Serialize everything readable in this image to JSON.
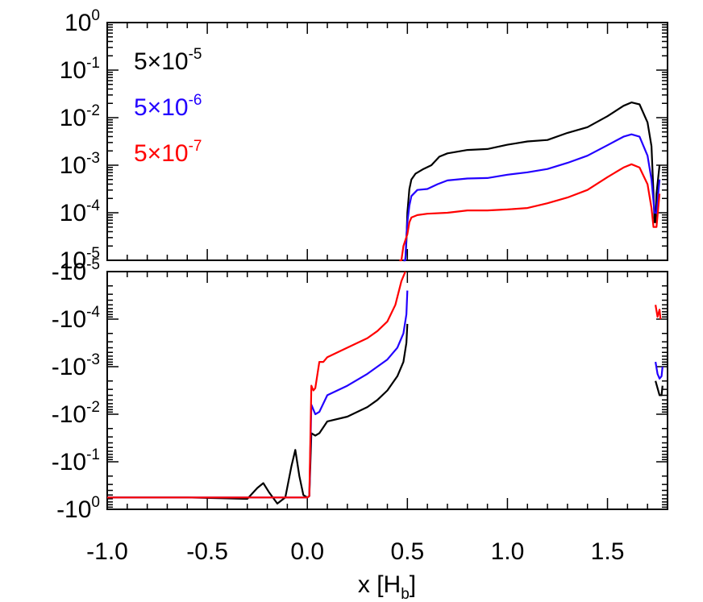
{
  "chart_data": {
    "type": "line",
    "xlabel": "x [H",
    "xlabel_sub": "b",
    "xlabel_close": "]",
    "xlim": [
      -1.0,
      1.8
    ],
    "x_ticks": [
      {
        "v": -1.0,
        "label": "-1.0"
      },
      {
        "v": -0.5,
        "label": "-0.5"
      },
      {
        "v": 0.0,
        "label": "0.0"
      },
      {
        "v": 0.5,
        "label": "0.5"
      },
      {
        "v": 1.0,
        "label": "1.0"
      },
      {
        "v": 1.5,
        "label": "1.5"
      }
    ],
    "top_panel": {
      "scale": "log",
      "ylim": [
        -5,
        0
      ],
      "y_ticks": [
        {
          "e": 0,
          "base": "10",
          "exp": "0"
        },
        {
          "e": -1,
          "base": "10",
          "exp": "-1"
        },
        {
          "e": -2,
          "base": "10",
          "exp": "-2"
        },
        {
          "e": -3,
          "base": "10",
          "exp": "-3"
        },
        {
          "e": -4,
          "base": "10",
          "exp": "-4"
        },
        {
          "e": -5,
          "base": "10",
          "exp": "-5"
        }
      ]
    },
    "bottom_panel": {
      "scale": "log (negative values)",
      "ylim": [
        -5,
        0
      ],
      "y_ticks": [
        {
          "e": -5,
          "base": "-10",
          "exp": "-5"
        },
        {
          "e": -4,
          "base": "-10",
          "exp": "-4"
        },
        {
          "e": -3,
          "base": "-10",
          "exp": "-3"
        },
        {
          "e": -2,
          "base": "-10",
          "exp": "-2"
        },
        {
          "e": -1,
          "base": "-10",
          "exp": "-1"
        },
        {
          "e": 0,
          "base": "-10",
          "exp": "0"
        }
      ]
    },
    "legend_placement": "top-left",
    "series": [
      {
        "name": "5×10",
        "name_exp": "-5",
        "color": "#000000",
        "top": [
          [
            [
              0.48,
              -5.5
            ],
            [
              0.49,
              -5.0
            ],
            [
              0.495,
              -4.6
            ],
            [
              0.5,
              -4.0
            ],
            [
              0.51,
              -3.5
            ],
            [
              0.52,
              -3.3
            ],
            [
              0.54,
              -3.18
            ],
            [
              0.58,
              -3.08
            ],
            [
              0.62,
              -3.0
            ],
            [
              0.66,
              -2.82
            ],
            [
              0.7,
              -2.75
            ],
            [
              0.8,
              -2.68
            ],
            [
              0.9,
              -2.66
            ],
            [
              1.0,
              -2.57
            ],
            [
              1.1,
              -2.5
            ],
            [
              1.2,
              -2.47
            ],
            [
              1.3,
              -2.32
            ],
            [
              1.4,
              -2.2
            ],
            [
              1.5,
              -1.97
            ],
            [
              1.58,
              -1.75
            ],
            [
              1.62,
              -1.68
            ],
            [
              1.66,
              -1.72
            ],
            [
              1.7,
              -2.1
            ],
            [
              1.72,
              -2.6
            ],
            [
              1.73,
              -3.6
            ],
            [
              1.735,
              -4.2
            ],
            [
              1.74,
              -4.2
            ],
            [
              1.745,
              -3.6
            ],
            [
              1.76,
              -3.0
            ]
          ]
        ],
        "bottom": [
          [
            [
              -1.0,
              -0.25
            ],
            [
              -0.6,
              -0.25
            ],
            [
              -0.4,
              -0.23
            ],
            [
              -0.3,
              -0.22
            ],
            [
              -0.25,
              -0.45
            ],
            [
              -0.22,
              -0.55
            ],
            [
              -0.19,
              -0.35
            ],
            [
              -0.15,
              -0.12
            ],
            [
              -0.11,
              -0.25
            ],
            [
              -0.08,
              -0.9
            ],
            [
              -0.06,
              -1.25
            ],
            [
              -0.04,
              -0.7
            ],
            [
              -0.02,
              -0.3
            ],
            [
              0.0,
              -0.25
            ],
            [
              0.01,
              -0.28
            ],
            [
              0.02,
              -1.6
            ],
            [
              0.04,
              -1.55
            ],
            [
              0.06,
              -1.6
            ],
            [
              0.1,
              -1.85
            ],
            [
              0.2,
              -1.95
            ],
            [
              0.3,
              -2.15
            ],
            [
              0.35,
              -2.3
            ],
            [
              0.4,
              -2.5
            ],
            [
              0.45,
              -2.8
            ],
            [
              0.48,
              -3.1
            ],
            [
              0.495,
              -3.5
            ],
            [
              0.5,
              -3.9
            ]
          ],
          [
            [
              1.74,
              -2.7
            ],
            [
              1.75,
              -2.55
            ],
            [
              1.76,
              -2.4
            ],
            [
              1.77,
              -2.4
            ],
            [
              1.775,
              -2.6
            ]
          ]
        ]
      },
      {
        "name": "5×10",
        "name_exp": "-6",
        "color": "#2200ff",
        "top": [
          [
            [
              0.48,
              -5.5
            ],
            [
              0.49,
              -5.0
            ],
            [
              0.495,
              -4.5
            ],
            [
              0.5,
              -4.2
            ],
            [
              0.51,
              -3.85
            ],
            [
              0.52,
              -3.65
            ],
            [
              0.55,
              -3.52
            ],
            [
              0.6,
              -3.5
            ],
            [
              0.65,
              -3.4
            ],
            [
              0.7,
              -3.32
            ],
            [
              0.8,
              -3.28
            ],
            [
              0.9,
              -3.27
            ],
            [
              1.0,
              -3.2
            ],
            [
              1.1,
              -3.15
            ],
            [
              1.2,
              -3.08
            ],
            [
              1.3,
              -2.95
            ],
            [
              1.4,
              -2.8
            ],
            [
              1.5,
              -2.58
            ],
            [
              1.58,
              -2.4
            ],
            [
              1.62,
              -2.35
            ],
            [
              1.66,
              -2.4
            ],
            [
              1.7,
              -2.8
            ],
            [
              1.72,
              -3.3
            ],
            [
              1.735,
              -4.0
            ],
            [
              1.745,
              -4.0
            ],
            [
              1.76,
              -3.3
            ]
          ]
        ],
        "bottom": [
          [
            [
              -1.0,
              -0.25
            ],
            [
              -0.2,
              -0.25
            ],
            [
              0.0,
              -0.25
            ],
            [
              0.01,
              -0.28
            ],
            [
              0.02,
              -2.2
            ],
            [
              0.04,
              -2.0
            ],
            [
              0.06,
              -2.05
            ],
            [
              0.1,
              -2.4
            ],
            [
              0.2,
              -2.6
            ],
            [
              0.3,
              -2.85
            ],
            [
              0.35,
              -3.0
            ],
            [
              0.4,
              -3.15
            ],
            [
              0.45,
              -3.4
            ],
            [
              0.48,
              -3.7
            ],
            [
              0.495,
              -4.1
            ],
            [
              0.5,
              -4.6
            ]
          ],
          [
            [
              1.74,
              -3.1
            ],
            [
              1.75,
              -2.85
            ],
            [
              1.76,
              -2.75
            ],
            [
              1.77,
              -2.8
            ],
            [
              1.775,
              -3.0
            ]
          ]
        ]
      },
      {
        "name": "5×10",
        "name_exp": "-7",
        "color": "#ff0000",
        "top": [
          [
            [
              0.46,
              -5.5
            ],
            [
              0.47,
              -5.1
            ],
            [
              0.48,
              -4.7
            ],
            [
              0.5,
              -4.45
            ],
            [
              0.51,
              -4.2
            ],
            [
              0.52,
              -4.1
            ],
            [
              0.55,
              -4.05
            ],
            [
              0.6,
              -4.02
            ],
            [
              0.7,
              -4.0
            ],
            [
              0.8,
              -3.95
            ],
            [
              0.9,
              -3.95
            ],
            [
              1.0,
              -3.93
            ],
            [
              1.1,
              -3.9
            ],
            [
              1.2,
              -3.8
            ],
            [
              1.3,
              -3.68
            ],
            [
              1.4,
              -3.52
            ],
            [
              1.5,
              -3.25
            ],
            [
              1.58,
              -3.05
            ],
            [
              1.62,
              -2.98
            ],
            [
              1.66,
              -3.05
            ],
            [
              1.7,
              -3.4
            ],
            [
              1.72,
              -3.9
            ],
            [
              1.73,
              -4.3
            ],
            [
              1.745,
              -4.3
            ],
            [
              1.76,
              -3.6
            ]
          ]
        ],
        "bottom": [
          [
            [
              -1.0,
              -0.25
            ],
            [
              -0.2,
              -0.25
            ],
            [
              0.0,
              -0.25
            ],
            [
              0.01,
              -0.28
            ],
            [
              0.02,
              -2.6
            ],
            [
              0.03,
              -2.5
            ],
            [
              0.04,
              -2.55
            ],
            [
              0.06,
              -3.1
            ],
            [
              0.08,
              -3.1
            ],
            [
              0.1,
              -3.2
            ],
            [
              0.2,
              -3.4
            ],
            [
              0.3,
              -3.6
            ],
            [
              0.35,
              -3.75
            ],
            [
              0.4,
              -3.95
            ],
            [
              0.44,
              -4.3
            ],
            [
              0.47,
              -4.8
            ],
            [
              0.49,
              -5.3
            ]
          ],
          [
            [
              1.74,
              -4.3
            ],
            [
              1.75,
              -4.05
            ],
            [
              1.76,
              -4.2
            ],
            [
              1.765,
              -4.0
            ]
          ]
        ]
      }
    ]
  }
}
